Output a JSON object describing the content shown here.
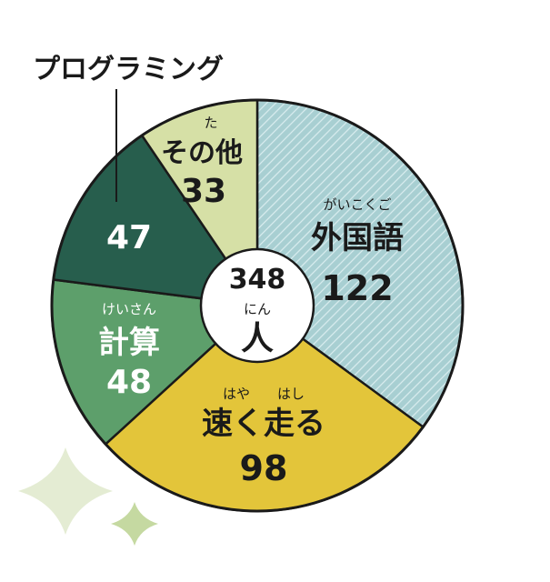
{
  "chart_data": {
    "type": "pie",
    "total": {
      "value": "348",
      "ruby": "にん",
      "unit": "人"
    },
    "slices": [
      {
        "label": "外国語",
        "ruby": "がいこくご",
        "value": 122,
        "color": "#a8cfd2",
        "hatched": true,
        "text_color": "#1a1a1a"
      },
      {
        "label": "速く走る",
        "ruby": "はや　　はし",
        "value": 98,
        "color": "#e3c53a",
        "text_color": "#1a1a1a"
      },
      {
        "label": "計算",
        "ruby": "けいさん",
        "value": 48,
        "color": "#5d9f6b",
        "text_color": "#ffffff"
      },
      {
        "label": "",
        "value": 47,
        "color": "#275e4d",
        "text_color": "#ffffff",
        "callout": "プログラミング"
      },
      {
        "label": "その他",
        "ruby": "た",
        "value": 33,
        "color": "#d6e0a6",
        "text_color": "#1a1a1a"
      }
    ]
  },
  "colors": {
    "outline": "#1a1a1a",
    "decor_large": "#e4ecd3",
    "decor_small": "#c5d9a1"
  }
}
